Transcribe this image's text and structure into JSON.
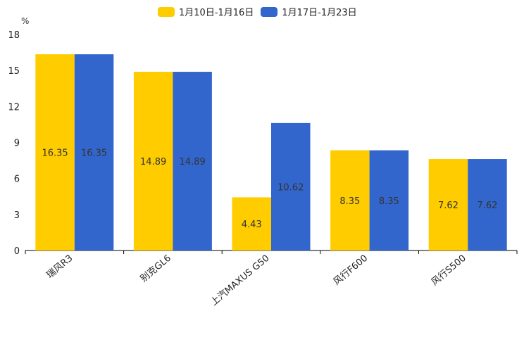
{
  "chart_data": {
    "type": "bar",
    "unit_label": "%",
    "categories": [
      "瑞风R3",
      "别克GL6",
      "上汽MAXUS G50",
      "风行F600",
      "风行S500"
    ],
    "series": [
      {
        "name": "1月10日-1月16日",
        "color": "#FFCC00",
        "values": [
          16.35,
          14.89,
          4.43,
          8.35,
          7.62
        ]
      },
      {
        "name": "1月17日-1月23日",
        "color": "#3366CC",
        "values": [
          16.35,
          14.89,
          10.62,
          8.35,
          7.62
        ]
      }
    ],
    "ylim": [
      0,
      18
    ],
    "yticks": [
      0,
      3,
      6,
      9,
      12,
      15,
      18
    ],
    "legend_position": "top-center",
    "grid": false
  }
}
